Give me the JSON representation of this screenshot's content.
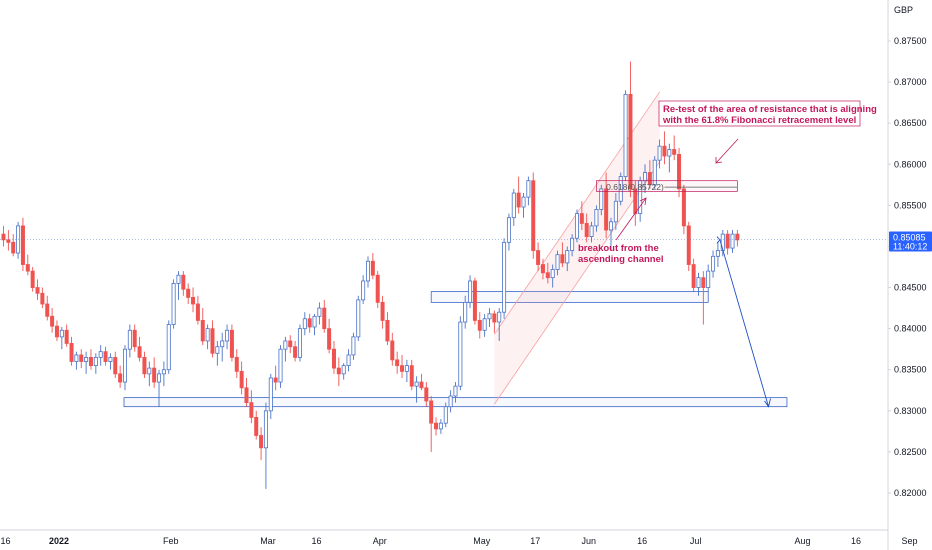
{
  "chart_data": {
    "type": "candlestick",
    "currency": "GBP",
    "last_price": "0.85085",
    "countdown": "11:40:12",
    "ylim": [
      0.8155,
      0.8795
    ],
    "y_ticks": [
      "0.87500",
      "0.87000",
      "0.86500",
      "0.86000",
      "0.85500",
      "0.85000",
      "0.84500",
      "0.84000",
      "0.83500",
      "0.83000",
      "0.82500",
      "0.82000"
    ],
    "x_ticks": [
      {
        "label": "16",
        "i": 0
      },
      {
        "label": "2022",
        "i": 11
      },
      {
        "label": "Feb",
        "i": 34
      },
      {
        "label": "Mar",
        "i": 54
      },
      {
        "label": "16",
        "i": 64
      },
      {
        "label": "Apr",
        "i": 77
      },
      {
        "label": "May",
        "i": 98
      },
      {
        "label": "17",
        "i": 109
      },
      {
        "label": "Jun",
        "i": 120
      },
      {
        "label": "16",
        "i": 131
      },
      {
        "label": "Jul",
        "i": 142
      },
      {
        "label": "Aug",
        "i": 164
      },
      {
        "label": "16",
        "i": 175
      },
      {
        "label": "Sep",
        "i": 186
      }
    ],
    "candles": [
      [
        0.8515,
        0.8525,
        0.85,
        0.8508
      ],
      [
        0.8508,
        0.852,
        0.8495,
        0.8505
      ],
      [
        0.8505,
        0.8515,
        0.8488,
        0.8492
      ],
      [
        0.8492,
        0.853,
        0.8485,
        0.8525
      ],
      [
        0.8525,
        0.8535,
        0.847,
        0.8478
      ],
      [
        0.8478,
        0.849,
        0.8465,
        0.847
      ],
      [
        0.847,
        0.8475,
        0.8445,
        0.845
      ],
      [
        0.845,
        0.846,
        0.8435,
        0.8443
      ],
      [
        0.8443,
        0.845,
        0.8425,
        0.843
      ],
      [
        0.843,
        0.844,
        0.841,
        0.8415
      ],
      [
        0.8415,
        0.8425,
        0.8395,
        0.8403
      ],
      [
        0.8403,
        0.841,
        0.8385,
        0.839
      ],
      [
        0.839,
        0.8402,
        0.8375,
        0.8398
      ],
      [
        0.8398,
        0.8405,
        0.8378,
        0.8382
      ],
      [
        0.8382,
        0.839,
        0.8355,
        0.836
      ],
      [
        0.836,
        0.8372,
        0.835,
        0.8368
      ],
      [
        0.8368,
        0.8375,
        0.8352,
        0.836
      ],
      [
        0.836,
        0.8372,
        0.8345,
        0.8365
      ],
      [
        0.8365,
        0.8375,
        0.835,
        0.8355
      ],
      [
        0.8355,
        0.837,
        0.8345,
        0.8365
      ],
      [
        0.8365,
        0.838,
        0.8355,
        0.8372
      ],
      [
        0.8372,
        0.8378,
        0.8355,
        0.836
      ],
      [
        0.836,
        0.837,
        0.835,
        0.8365
      ],
      [
        0.8365,
        0.8372,
        0.834,
        0.8345
      ],
      [
        0.8345,
        0.8355,
        0.8328,
        0.8335
      ],
      [
        0.8335,
        0.838,
        0.8325,
        0.8375
      ],
      [
        0.8375,
        0.8405,
        0.8365,
        0.8398
      ],
      [
        0.8398,
        0.8405,
        0.8372,
        0.8378
      ],
      [
        0.8378,
        0.839,
        0.836,
        0.8365
      ],
      [
        0.8365,
        0.8372,
        0.834,
        0.8345
      ],
      [
        0.8345,
        0.836,
        0.833,
        0.8352
      ],
      [
        0.8352,
        0.8365,
        0.8328,
        0.8335
      ],
      [
        0.8335,
        0.835,
        0.8305,
        0.8345
      ],
      [
        0.8345,
        0.836,
        0.833,
        0.835
      ],
      [
        0.835,
        0.841,
        0.8345,
        0.8405
      ],
      [
        0.8405,
        0.846,
        0.84,
        0.8455
      ],
      [
        0.8455,
        0.847,
        0.8435,
        0.8465
      ],
      [
        0.8465,
        0.847,
        0.844,
        0.8448
      ],
      [
        0.8448,
        0.8455,
        0.843,
        0.8438
      ],
      [
        0.8438,
        0.845,
        0.842,
        0.843
      ],
      [
        0.843,
        0.844,
        0.8405,
        0.841
      ],
      [
        0.841,
        0.8425,
        0.838,
        0.8385
      ],
      [
        0.8385,
        0.8405,
        0.8375,
        0.84
      ],
      [
        0.84,
        0.841,
        0.8365,
        0.837
      ],
      [
        0.837,
        0.8385,
        0.8355,
        0.8378
      ],
      [
        0.8378,
        0.8395,
        0.836,
        0.8385
      ],
      [
        0.8385,
        0.8405,
        0.8375,
        0.8398
      ],
      [
        0.8398,
        0.8405,
        0.836,
        0.8365
      ],
      [
        0.8365,
        0.8375,
        0.834,
        0.8348
      ],
      [
        0.8348,
        0.836,
        0.832,
        0.8328
      ],
      [
        0.8328,
        0.834,
        0.8305,
        0.831
      ],
      [
        0.831,
        0.8325,
        0.8285,
        0.8292
      ],
      [
        0.8292,
        0.83,
        0.8265,
        0.827
      ],
      [
        0.827,
        0.828,
        0.824,
        0.8255
      ],
      [
        0.8255,
        0.831,
        0.8205,
        0.83
      ],
      [
        0.83,
        0.8345,
        0.829,
        0.834
      ],
      [
        0.834,
        0.8355,
        0.8325,
        0.8335
      ],
      [
        0.8335,
        0.838,
        0.8328,
        0.8375
      ],
      [
        0.8375,
        0.839,
        0.836,
        0.8385
      ],
      [
        0.8385,
        0.8392,
        0.837,
        0.8378
      ],
      [
        0.8378,
        0.8385,
        0.836,
        0.8365
      ],
      [
        0.8365,
        0.8405,
        0.836,
        0.84
      ],
      [
        0.84,
        0.842,
        0.8392,
        0.8412
      ],
      [
        0.8412,
        0.8418,
        0.8395,
        0.8402
      ],
      [
        0.8402,
        0.8418,
        0.8392,
        0.8415
      ],
      [
        0.8415,
        0.8432,
        0.8405,
        0.8425
      ],
      [
        0.8425,
        0.8435,
        0.8395,
        0.84
      ],
      [
        0.84,
        0.8412,
        0.837,
        0.8375
      ],
      [
        0.8375,
        0.8385,
        0.8345,
        0.8352
      ],
      [
        0.8352,
        0.8365,
        0.833,
        0.8345
      ],
      [
        0.8345,
        0.8358,
        0.8338,
        0.8355
      ],
      [
        0.8355,
        0.8375,
        0.8348,
        0.8368
      ],
      [
        0.8368,
        0.8395,
        0.8362,
        0.839
      ],
      [
        0.839,
        0.844,
        0.8385,
        0.8435
      ],
      [
        0.8435,
        0.8465,
        0.843,
        0.8458
      ],
      [
        0.8458,
        0.8488,
        0.845,
        0.8482
      ],
      [
        0.8482,
        0.8492,
        0.846,
        0.8465
      ],
      [
        0.8465,
        0.847,
        0.8425,
        0.8432
      ],
      [
        0.8432,
        0.844,
        0.84,
        0.841
      ],
      [
        0.841,
        0.842,
        0.838,
        0.8385
      ],
      [
        0.8385,
        0.8395,
        0.8355,
        0.8362
      ],
      [
        0.8362,
        0.8372,
        0.8345,
        0.8355
      ],
      [
        0.8355,
        0.8368,
        0.834,
        0.8348
      ],
      [
        0.8348,
        0.8362,
        0.8335,
        0.8355
      ],
      [
        0.8355,
        0.8362,
        0.8325,
        0.833
      ],
      [
        0.833,
        0.8342,
        0.831,
        0.8335
      ],
      [
        0.8335,
        0.8345,
        0.8325,
        0.8328
      ],
      [
        0.8328,
        0.8335,
        0.8305,
        0.8312
      ],
      [
        0.8312,
        0.8318,
        0.825,
        0.8285
      ],
      [
        0.8285,
        0.8292,
        0.827,
        0.8278
      ],
      [
        0.8278,
        0.829,
        0.8272,
        0.8285
      ],
      [
        0.8285,
        0.831,
        0.828,
        0.8305
      ],
      [
        0.8305,
        0.8325,
        0.8298,
        0.8318
      ],
      [
        0.8318,
        0.8335,
        0.831,
        0.833
      ],
      [
        0.833,
        0.8415,
        0.8325,
        0.8408
      ],
      [
        0.8408,
        0.844,
        0.84,
        0.8432
      ],
      [
        0.8432,
        0.8465,
        0.8425,
        0.8458
      ],
      [
        0.8458,
        0.8462,
        0.8405,
        0.841
      ],
      [
        0.841,
        0.842,
        0.8388,
        0.8398
      ],
      [
        0.8398,
        0.8418,
        0.839,
        0.8412
      ],
      [
        0.8412,
        0.8425,
        0.8402,
        0.8418
      ],
      [
        0.8418,
        0.8422,
        0.8395,
        0.8408
      ],
      [
        0.8408,
        0.8425,
        0.8385,
        0.842
      ],
      [
        0.842,
        0.851,
        0.8412,
        0.8505
      ],
      [
        0.8505,
        0.854,
        0.8495,
        0.8535
      ],
      [
        0.8535,
        0.857,
        0.8525,
        0.8565
      ],
      [
        0.8565,
        0.8585,
        0.854,
        0.8548
      ],
      [
        0.8548,
        0.8565,
        0.8535,
        0.856
      ],
      [
        0.856,
        0.8585,
        0.855,
        0.858
      ],
      [
        0.858,
        0.859,
        0.8485,
        0.8495
      ],
      [
        0.8495,
        0.8505,
        0.847,
        0.8478
      ],
      [
        0.8478,
        0.8485,
        0.846,
        0.8468
      ],
      [
        0.8468,
        0.848,
        0.8455,
        0.8462
      ],
      [
        0.8462,
        0.8478,
        0.845,
        0.8472
      ],
      [
        0.8472,
        0.8495,
        0.8465,
        0.849
      ],
      [
        0.849,
        0.8505,
        0.8475,
        0.848
      ],
      [
        0.848,
        0.85,
        0.847,
        0.8495
      ],
      [
        0.8495,
        0.8515,
        0.8488,
        0.851
      ],
      [
        0.851,
        0.8545,
        0.8505,
        0.854
      ],
      [
        0.854,
        0.8555,
        0.852,
        0.8528
      ],
      [
        0.8528,
        0.854,
        0.8505,
        0.8512
      ],
      [
        0.8512,
        0.853,
        0.8505,
        0.8525
      ],
      [
        0.8525,
        0.855,
        0.8518,
        0.8545
      ],
      [
        0.8545,
        0.8575,
        0.8538,
        0.857
      ],
      [
        0.857,
        0.859,
        0.851,
        0.852
      ],
      [
        0.852,
        0.8535,
        0.8495,
        0.853
      ],
      [
        0.853,
        0.8565,
        0.852,
        0.8555
      ],
      [
        0.8555,
        0.859,
        0.855,
        0.8585
      ],
      [
        0.8585,
        0.869,
        0.858,
        0.8685
      ],
      [
        0.8685,
        0.8725,
        0.856,
        0.857
      ],
      [
        0.857,
        0.858,
        0.8525,
        0.854
      ],
      [
        0.854,
        0.8585,
        0.853,
        0.858
      ],
      [
        0.858,
        0.86,
        0.8565,
        0.859
      ],
      [
        0.859,
        0.8605,
        0.857,
        0.8575
      ],
      [
        0.8575,
        0.861,
        0.857,
        0.8605
      ],
      [
        0.8605,
        0.863,
        0.8595,
        0.8622
      ],
      [
        0.8622,
        0.864,
        0.86,
        0.861
      ],
      [
        0.861,
        0.8625,
        0.859,
        0.8618
      ],
      [
        0.8618,
        0.8635,
        0.8605,
        0.8612
      ],
      [
        0.8612,
        0.862,
        0.856,
        0.857
      ],
      [
        0.857,
        0.8575,
        0.8515,
        0.8525
      ],
      [
        0.8525,
        0.853,
        0.847,
        0.8478
      ],
      [
        0.8478,
        0.8485,
        0.8445,
        0.845
      ],
      [
        0.845,
        0.8468,
        0.844,
        0.8462
      ],
      [
        0.8462,
        0.847,
        0.8405,
        0.845
      ],
      [
        0.845,
        0.8478,
        0.8445,
        0.847
      ],
      [
        0.847,
        0.8495,
        0.8462,
        0.8488
      ],
      [
        0.8488,
        0.8505,
        0.8475,
        0.8495
      ],
      [
        0.8495,
        0.852,
        0.8488,
        0.8515
      ],
      [
        0.8515,
        0.852,
        0.849,
        0.8498
      ],
      [
        0.8498,
        0.852,
        0.8492,
        0.8515
      ],
      [
        0.8515,
        0.852,
        0.85,
        0.8508
      ]
    ],
    "bull_color": "#4a73c9",
    "bear_color": "#ef5350",
    "drawing_color": "#1f4fc4",
    "annotation_color": "#c2185b",
    "channel_color": "#f8a0a0",
    "fib_label": "0.618(0.85722)",
    "annotations": [
      {
        "lines": [
          "Re-test of the area of resistance that is aligning",
          "with the 61.8% Fibonacci retracement level"
        ]
      },
      {
        "lines": [
          "breakout from the",
          "ascending channel"
        ]
      }
    ]
  }
}
